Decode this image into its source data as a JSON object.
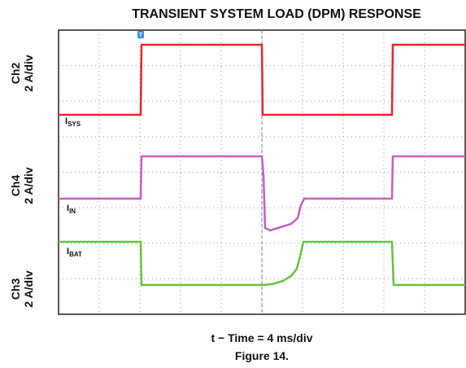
{
  "title": "TRANSIENT SYSTEM LOAD (DPM) RESPONSE",
  "channels": [
    {
      "name": "Ch2",
      "scale": "2 A/div"
    },
    {
      "name": "Ch4",
      "scale": "2 A/div"
    },
    {
      "name": "Ch3",
      "scale": "2 A/div"
    }
  ],
  "traces": [
    {
      "main": "I",
      "sub": "SYS"
    },
    {
      "main": "I",
      "sub": "IN"
    },
    {
      "main": "I",
      "sub": "BAT"
    }
  ],
  "trigger": "T",
  "x_label": "t − Time = 4 ms/div",
  "caption": "Figure 14."
}
